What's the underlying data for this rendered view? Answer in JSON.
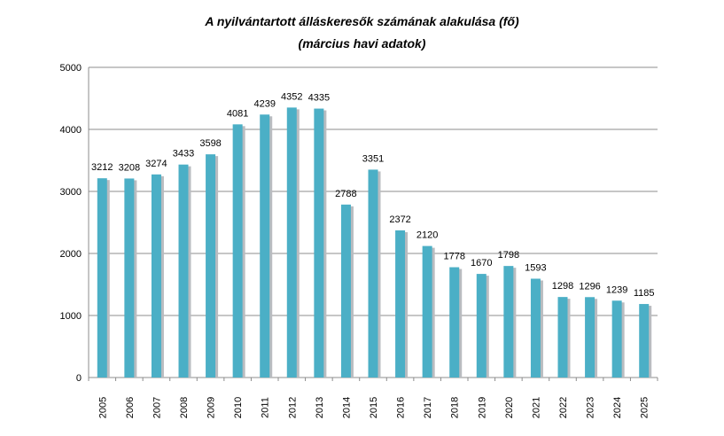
{
  "chart_data": {
    "type": "bar",
    "title": "A nyilvántartott álláskeresők számának alakulása (fő)",
    "subtitle": "(március havi adatok)",
    "categories": [
      "2005",
      "2006",
      "2007",
      "2008",
      "2009",
      "2010",
      "2011",
      "2012",
      "2013",
      "2014",
      "2015",
      "2016",
      "2017",
      "2018",
      "2019",
      "2020",
      "2021",
      "2022",
      "2023",
      "2024",
      "2025"
    ],
    "values": [
      3212,
      3208,
      3274,
      3433,
      3598,
      4081,
      4239,
      4352,
      4335,
      2788,
      3351,
      2372,
      2120,
      1778,
      1670,
      1798,
      1593,
      1298,
      1296,
      1239,
      1185
    ],
    "xlabel": "",
    "ylabel": "",
    "ylim": [
      0,
      5000
    ],
    "yticks": [
      0,
      1000,
      2000,
      3000,
      4000,
      5000
    ],
    "grid": true,
    "legend": "none",
    "colors": {
      "bar": "#4BAFC6",
      "bar_shadow": "#B9BCC0",
      "grid": "#8C8C8C",
      "axis": "#8C8C8C"
    }
  }
}
